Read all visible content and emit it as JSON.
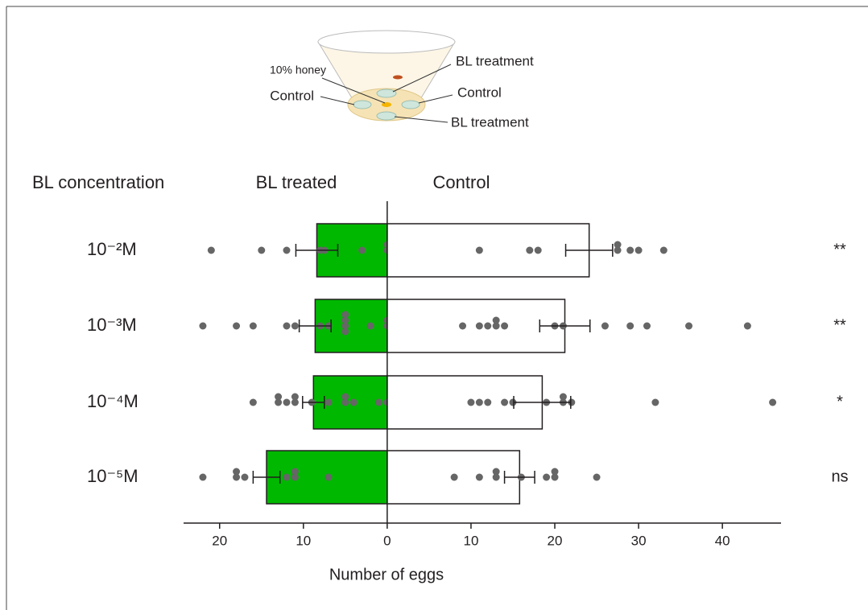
{
  "chart_data": {
    "type": "bar",
    "orientation": "horizontal",
    "y_label": "BL concentration",
    "x_label": "Number of eggs",
    "categories": [
      "10⁻²M",
      "10⁻³M",
      "10⁻⁴M",
      "10⁻⁵M"
    ],
    "series": [
      {
        "name": "BL treated",
        "color": "#00b800",
        "values": [
          -8.4,
          -8.6,
          -8.8,
          -14.4
        ],
        "errors": [
          2.5,
          1.9,
          1.3,
          1.6
        ],
        "points": [
          [
            -21,
            -15,
            -12,
            -8,
            -7.5,
            -3,
            0,
            0
          ],
          [
            -22,
            -18,
            -16,
            -12,
            -11,
            -8,
            -7,
            -5,
            -5,
            -5,
            -5,
            -2,
            0,
            0
          ],
          [
            -16,
            -13,
            -13,
            -12,
            -11,
            -11,
            -9,
            -7,
            -5,
            -5,
            -4,
            -1,
            0
          ],
          [
            -22,
            -18,
            -18,
            -17,
            -12,
            -11,
            -11,
            -7
          ]
        ]
      },
      {
        "name": "Control",
        "color": "#ffffff",
        "values": [
          24.1,
          21.2,
          18.5,
          15.8
        ],
        "errors": [
          2.8,
          3.0,
          3.4,
          1.8
        ],
        "points": [
          [
            11,
            17,
            18,
            27.5,
            27.5,
            29,
            30,
            33
          ],
          [
            9,
            11,
            12,
            13,
            13,
            14,
            20,
            21,
            26,
            29,
            31,
            36,
            43
          ],
          [
            10,
            11,
            12,
            14,
            15,
            19,
            21,
            21,
            22,
            32,
            46
          ],
          [
            8,
            11,
            13,
            13,
            16,
            19,
            20,
            20,
            25
          ]
        ]
      }
    ],
    "point_color": "#666666",
    "significance": [
      "**",
      "**",
      "*",
      "ns"
    ],
    "xlim": [
      -24.3,
      47
    ],
    "xticks": [
      {
        "value": -20,
        "label": "20"
      },
      {
        "value": -10,
        "label": "10"
      },
      0,
      10,
      20,
      30,
      40
    ]
  },
  "inset": {
    "labels": [
      "10% honey",
      "BL treatment",
      "Control",
      "Control",
      "BL treatment"
    ]
  }
}
